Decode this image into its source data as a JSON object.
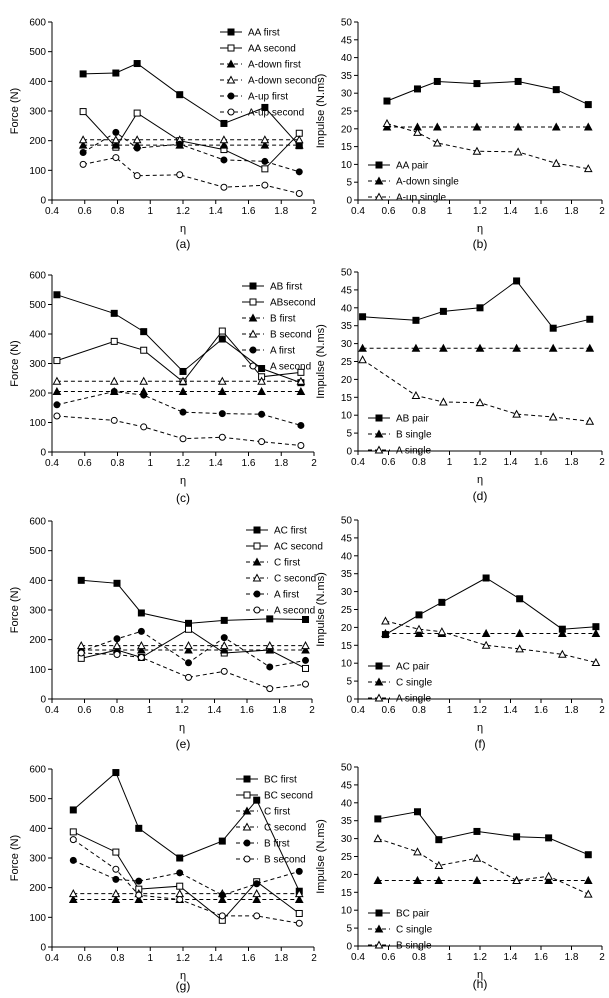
{
  "chart_data": [
    {
      "panel": "a",
      "caption": "(a)",
      "type": "line",
      "xlabel": "η",
      "ylabel": "Force (N)",
      "xlim": [
        0.4,
        2
      ],
      "ylim": [
        0,
        600
      ],
      "xticks": [
        0.4,
        0.6,
        0.8,
        1,
        1.2,
        1.4,
        1.6,
        1.8,
        2
      ],
      "yticks": [
        0,
        100,
        200,
        300,
        400,
        500,
        600
      ],
      "legend": "top-right",
      "series": [
        {
          "name": "AA first",
          "x": [
            0.59,
            0.79,
            0.92,
            1.18,
            1.45,
            1.7,
            1.91
          ],
          "y": [
            425,
            428,
            460,
            355,
            258,
            312,
            183
          ],
          "dash": "solid",
          "marker": "square-filled"
        },
        {
          "name": "AA second",
          "x": [
            0.59,
            0.79,
            0.92,
            1.18,
            1.45,
            1.7,
            1.91
          ],
          "y": [
            298,
            178,
            293,
            200,
            170,
            105,
            225
          ],
          "dash": "solid",
          "marker": "square-open"
        },
        {
          "name": "A-down first",
          "x": [
            0.59,
            0.79,
            0.92,
            1.18,
            1.45,
            1.7,
            1.91
          ],
          "y": [
            185,
            185,
            185,
            185,
            185,
            185,
            185
          ],
          "dash": "dashed",
          "marker": "triangle-filled"
        },
        {
          "name": "A-down second",
          "x": [
            0.59,
            0.79,
            0.92,
            1.18,
            1.45,
            1.7,
            1.91
          ],
          "y": [
            203,
            203,
            203,
            203,
            203,
            203,
            203
          ],
          "dash": "dashed",
          "marker": "triangle-open"
        },
        {
          "name": "A-up first",
          "x": [
            0.59,
            0.79,
            0.92,
            1.18,
            1.45,
            1.7,
            1.91
          ],
          "y": [
            160,
            228,
            175,
            188,
            135,
            130,
            95
          ],
          "dash": "dashed",
          "marker": "circle-filled"
        },
        {
          "name": "A-up second",
          "x": [
            0.59,
            0.79,
            0.92,
            1.18,
            1.45,
            1.7,
            1.91
          ],
          "y": [
            120,
            143,
            82,
            85,
            43,
            50,
            22
          ],
          "dash": "dashed",
          "marker": "circle-open"
        }
      ]
    },
    {
      "panel": "b",
      "caption": "(b)",
      "type": "line",
      "xlabel": "η",
      "ylabel": "Impulse (N.ms)",
      "xlim": [
        0.4,
        2
      ],
      "ylim": [
        0,
        50
      ],
      "xticks": [
        0.4,
        0.6,
        0.8,
        1,
        1.2,
        1.4,
        1.6,
        1.8,
        2
      ],
      "yticks": [
        0,
        5,
        10,
        15,
        20,
        25,
        30,
        35,
        40,
        45,
        50
      ],
      "legend": "bottom-left",
      "series": [
        {
          "name": "AA pair",
          "x": [
            0.59,
            0.79,
            0.92,
            1.18,
            1.45,
            1.7,
            1.91
          ],
          "y": [
            27.8,
            31.2,
            33.3,
            32.7,
            33.3,
            31.0,
            26.8
          ],
          "dash": "solid",
          "marker": "square-filled"
        },
        {
          "name": "A-down single",
          "x": [
            0.59,
            0.79,
            0.92,
            1.18,
            1.45,
            1.7,
            1.91
          ],
          "y": [
            20.5,
            20.5,
            20.5,
            20.5,
            20.5,
            20.5,
            20.5
          ],
          "dash": "dashed",
          "marker": "triangle-filled"
        },
        {
          "name": "A-up single",
          "x": [
            0.59,
            0.79,
            0.92,
            1.18,
            1.45,
            1.7,
            1.91
          ],
          "y": [
            21.5,
            19.0,
            16.0,
            13.7,
            13.5,
            10.3,
            8.8
          ],
          "dash": "dashed",
          "marker": "triangle-open"
        }
      ]
    },
    {
      "panel": "c",
      "caption": "(c)",
      "type": "line",
      "xlabel": "η",
      "ylabel": "Force (N)",
      "xlim": [
        0.4,
        2
      ],
      "ylim": [
        0,
        600
      ],
      "xticks": [
        0.4,
        0.6,
        0.8,
        1,
        1.2,
        1.4,
        1.6,
        1.8,
        2
      ],
      "yticks": [
        0,
        100,
        200,
        300,
        400,
        500,
        600
      ],
      "legend": "top-right",
      "series": [
        {
          "name": "AB first",
          "x": [
            0.43,
            0.78,
            0.96,
            1.2,
            1.44,
            1.68,
            1.92
          ],
          "y": [
            533,
            470,
            408,
            273,
            383,
            283,
            235
          ],
          "dash": "solid",
          "marker": "square-filled"
        },
        {
          "name": "ABsecond",
          "x": [
            0.43,
            0.78,
            0.96,
            1.2,
            1.44,
            1.68,
            1.92
          ],
          "y": [
            310,
            375,
            345,
            238,
            410,
            255,
            270
          ],
          "dash": "solid",
          "marker": "square-open"
        },
        {
          "name": "B first",
          "x": [
            0.43,
            0.78,
            0.96,
            1.2,
            1.44,
            1.68,
            1.92
          ],
          "y": [
            205,
            205,
            205,
            205,
            205,
            205,
            205
          ],
          "dash": "dashed",
          "marker": "triangle-filled"
        },
        {
          "name": "B second",
          "x": [
            0.43,
            0.78,
            0.96,
            1.2,
            1.44,
            1.68,
            1.92
          ],
          "y": [
            240,
            240,
            240,
            240,
            240,
            240,
            240
          ],
          "dash": "dashed",
          "marker": "triangle-open"
        },
        {
          "name": "A first",
          "x": [
            0.43,
            0.78,
            0.96,
            1.2,
            1.44,
            1.68,
            1.92
          ],
          "y": [
            160,
            205,
            193,
            135,
            130,
            128,
            90
          ],
          "dash": "dashed",
          "marker": "circle-filled"
        },
        {
          "name": "A second",
          "x": [
            0.43,
            0.78,
            0.96,
            1.2,
            1.44,
            1.68,
            1.92
          ],
          "y": [
            122,
            107,
            85,
            45,
            50,
            35,
            22
          ],
          "dash": "dashed",
          "marker": "circle-open"
        }
      ]
    },
    {
      "panel": "d",
      "caption": "(d)",
      "type": "line",
      "xlabel": "η",
      "ylabel": "Impulse (N.ms)",
      "xlim": [
        0.4,
        2
      ],
      "ylim": [
        0,
        50
      ],
      "xticks": [
        0.4,
        0.6,
        0.8,
        1,
        1.2,
        1.4,
        1.6,
        1.8,
        2
      ],
      "yticks": [
        0,
        5,
        10,
        15,
        20,
        25,
        30,
        35,
        40,
        45,
        50
      ],
      "legend": "bottom-left",
      "series": [
        {
          "name": "AB pair",
          "x": [
            0.43,
            0.78,
            0.96,
            1.2,
            1.44,
            1.68,
            1.92
          ],
          "y": [
            37.5,
            36.5,
            39.0,
            40.0,
            47.5,
            34.3,
            36.8
          ],
          "dash": "solid",
          "marker": "square-filled"
        },
        {
          "name": "B single",
          "x": [
            0.43,
            0.78,
            0.96,
            1.2,
            1.44,
            1.68,
            1.92
          ],
          "y": [
            28.7,
            28.7,
            28.7,
            28.7,
            28.7,
            28.7,
            28.7
          ],
          "dash": "dashed",
          "marker": "triangle-filled"
        },
        {
          "name": "A single",
          "x": [
            0.43,
            0.78,
            0.96,
            1.2,
            1.44,
            1.68,
            1.92
          ],
          "y": [
            25.5,
            15.5,
            13.7,
            13.5,
            10.3,
            9.5,
            8.3
          ],
          "dash": "dashed",
          "marker": "triangle-open"
        }
      ]
    },
    {
      "panel": "e",
      "caption": "(e)",
      "type": "line",
      "xlabel": "η",
      "ylabel": "Force (N)",
      "xlim": [
        0.4,
        2
      ],
      "ylim": [
        0,
        600
      ],
      "xticks": [
        0.4,
        0.6,
        0.8,
        1,
        1.2,
        1.4,
        1.6,
        1.8,
        2
      ],
      "yticks": [
        0,
        100,
        200,
        300,
        400,
        500,
        600
      ],
      "legend": "top-right",
      "series": [
        {
          "name": "AC first",
          "x": [
            0.58,
            0.8,
            0.95,
            1.24,
            1.46,
            1.74,
            1.96
          ],
          "y": [
            400,
            390,
            290,
            255,
            265,
            270,
            268
          ],
          "dash": "solid",
          "marker": "square-filled"
        },
        {
          "name": "AC second",
          "x": [
            0.58,
            0.8,
            0.95,
            1.24,
            1.46,
            1.74,
            1.96
          ],
          "y": [
            137,
            165,
            140,
            235,
            155,
            165,
            103
          ],
          "dash": "solid",
          "marker": "square-open"
        },
        {
          "name": "C first",
          "x": [
            0.58,
            0.8,
            0.95,
            1.24,
            1.46,
            1.74,
            1.96
          ],
          "y": [
            165,
            165,
            165,
            165,
            165,
            165,
            165
          ],
          "dash": "dashed",
          "marker": "triangle-filled"
        },
        {
          "name": "C second",
          "x": [
            0.58,
            0.8,
            0.95,
            1.24,
            1.46,
            1.74,
            1.96
          ],
          "y": [
            180,
            180,
            180,
            180,
            180,
            180,
            180
          ],
          "dash": "dashed",
          "marker": "triangle-open"
        },
        {
          "name": "A first",
          "x": [
            0.58,
            0.8,
            0.95,
            1.24,
            1.46,
            1.74,
            1.96
          ],
          "y": [
            160,
            203,
            228,
            122,
            207,
            108,
            130
          ],
          "dash": "dashed",
          "marker": "circle-filled"
        },
        {
          "name": "A second",
          "x": [
            0.58,
            0.8,
            0.95,
            1.24,
            1.46,
            1.74,
            1.96
          ],
          "y": [
            155,
            150,
            140,
            73,
            93,
            35,
            50
          ],
          "dash": "dashed",
          "marker": "circle-open"
        }
      ]
    },
    {
      "panel": "f",
      "caption": "(f)",
      "type": "line",
      "xlabel": "η",
      "ylabel": "Impulse (N.ms)",
      "xlim": [
        0.4,
        2
      ],
      "ylim": [
        0,
        50
      ],
      "xticks": [
        0.4,
        0.6,
        0.8,
        1,
        1.2,
        1.4,
        1.6,
        1.8,
        2
      ],
      "yticks": [
        0,
        5,
        10,
        15,
        20,
        25,
        30,
        35,
        40,
        45,
        50
      ],
      "legend": "bottom-left",
      "series": [
        {
          "name": "AC pair",
          "x": [
            0.58,
            0.8,
            0.95,
            1.24,
            1.46,
            1.74,
            1.96
          ],
          "y": [
            18.0,
            23.5,
            27.0,
            33.8,
            28.0,
            19.5,
            20.2
          ],
          "dash": "solid",
          "marker": "square-filled"
        },
        {
          "name": "C single",
          "x": [
            0.58,
            0.8,
            0.95,
            1.24,
            1.46,
            1.74,
            1.96
          ],
          "y": [
            18.3,
            18.3,
            18.3,
            18.3,
            18.3,
            18.3,
            18.3
          ],
          "dash": "dashed",
          "marker": "triangle-filled"
        },
        {
          "name": "A single",
          "x": [
            0.58,
            0.8,
            0.95,
            1.24,
            1.46,
            1.74,
            1.96
          ],
          "y": [
            21.8,
            19.5,
            18.8,
            15.0,
            14.0,
            12.5,
            10.2
          ],
          "dash": "dashed",
          "marker": "triangle-open"
        }
      ]
    },
    {
      "panel": "g",
      "caption": "(g)",
      "type": "line",
      "xlabel": "η",
      "ylabel": "Force (N)",
      "xlim": [
        0.4,
        2
      ],
      "ylim": [
        0,
        600
      ],
      "xticks": [
        0.4,
        0.6,
        0.8,
        1,
        1.2,
        1.4,
        1.6,
        1.8,
        2
      ],
      "yticks": [
        0,
        100,
        200,
        300,
        400,
        500,
        600
      ],
      "legend": "top-right",
      "series": [
        {
          "name": "BC first",
          "x": [
            0.53,
            0.79,
            0.93,
            1.18,
            1.44,
            1.65,
            1.91
          ],
          "y": [
            462,
            588,
            400,
            300,
            357,
            495,
            188
          ],
          "dash": "solid",
          "marker": "square-filled"
        },
        {
          "name": "BC second",
          "x": [
            0.53,
            0.79,
            0.93,
            1.18,
            1.44,
            1.65,
            1.91
          ],
          "y": [
            388,
            320,
            195,
            205,
            90,
            220,
            113
          ],
          "dash": "solid",
          "marker": "square-open"
        },
        {
          "name": "C first",
          "x": [
            0.53,
            0.79,
            0.93,
            1.18,
            1.44,
            1.65,
            1.91
          ],
          "y": [
            160,
            160,
            160,
            160,
            160,
            160,
            160
          ],
          "dash": "dashed",
          "marker": "triangle-filled"
        },
        {
          "name": "C second",
          "x": [
            0.53,
            0.79,
            0.93,
            1.18,
            1.44,
            1.65,
            1.91
          ],
          "y": [
            180,
            180,
            180,
            180,
            180,
            180,
            180
          ],
          "dash": "dashed",
          "marker": "triangle-open"
        },
        {
          "name": "B first",
          "x": [
            0.53,
            0.79,
            0.93,
            1.18,
            1.44,
            1.65,
            1.91
          ],
          "y": [
            292,
            228,
            222,
            250,
            175,
            213,
            255
          ],
          "dash": "dashed",
          "marker": "circle-filled"
        },
        {
          "name": "B second",
          "x": [
            0.53,
            0.79,
            0.93,
            1.18,
            1.44,
            1.65,
            1.91
          ],
          "y": [
            362,
            262,
            175,
            160,
            105,
            105,
            80
          ],
          "dash": "dashed",
          "marker": "circle-open"
        }
      ]
    },
    {
      "panel": "h",
      "caption": "(h)",
      "type": "line",
      "xlabel": "η",
      "ylabel": "Impulse (N.ms)",
      "xlim": [
        0.4,
        2
      ],
      "ylim": [
        0,
        50
      ],
      "xticks": [
        0.4,
        0.6,
        0.8,
        1,
        1.2,
        1.4,
        1.6,
        1.8,
        2
      ],
      "yticks": [
        0,
        5,
        10,
        15,
        20,
        25,
        30,
        35,
        40,
        45,
        50
      ],
      "legend": "bottom-left",
      "series": [
        {
          "name": "BC pair",
          "x": [
            0.53,
            0.79,
            0.93,
            1.18,
            1.44,
            1.65,
            1.91
          ],
          "y": [
            35.5,
            37.5,
            29.7,
            32.0,
            30.5,
            30.2,
            25.5
          ],
          "dash": "solid",
          "marker": "square-filled"
        },
        {
          "name": "C single",
          "x": [
            0.53,
            0.79,
            0.93,
            1.18,
            1.44,
            1.65,
            1.91
          ],
          "y": [
            18.3,
            18.3,
            18.3,
            18.3,
            18.3,
            18.3,
            18.3
          ],
          "dash": "dashed",
          "marker": "triangle-filled"
        },
        {
          "name": "B single",
          "x": [
            0.53,
            0.79,
            0.93,
            1.18,
            1.44,
            1.65,
            1.91
          ],
          "y": [
            30.0,
            26.3,
            22.5,
            24.5,
            18.3,
            19.5,
            14.5
          ],
          "dash": "dashed",
          "marker": "triangle-open"
        }
      ]
    }
  ]
}
